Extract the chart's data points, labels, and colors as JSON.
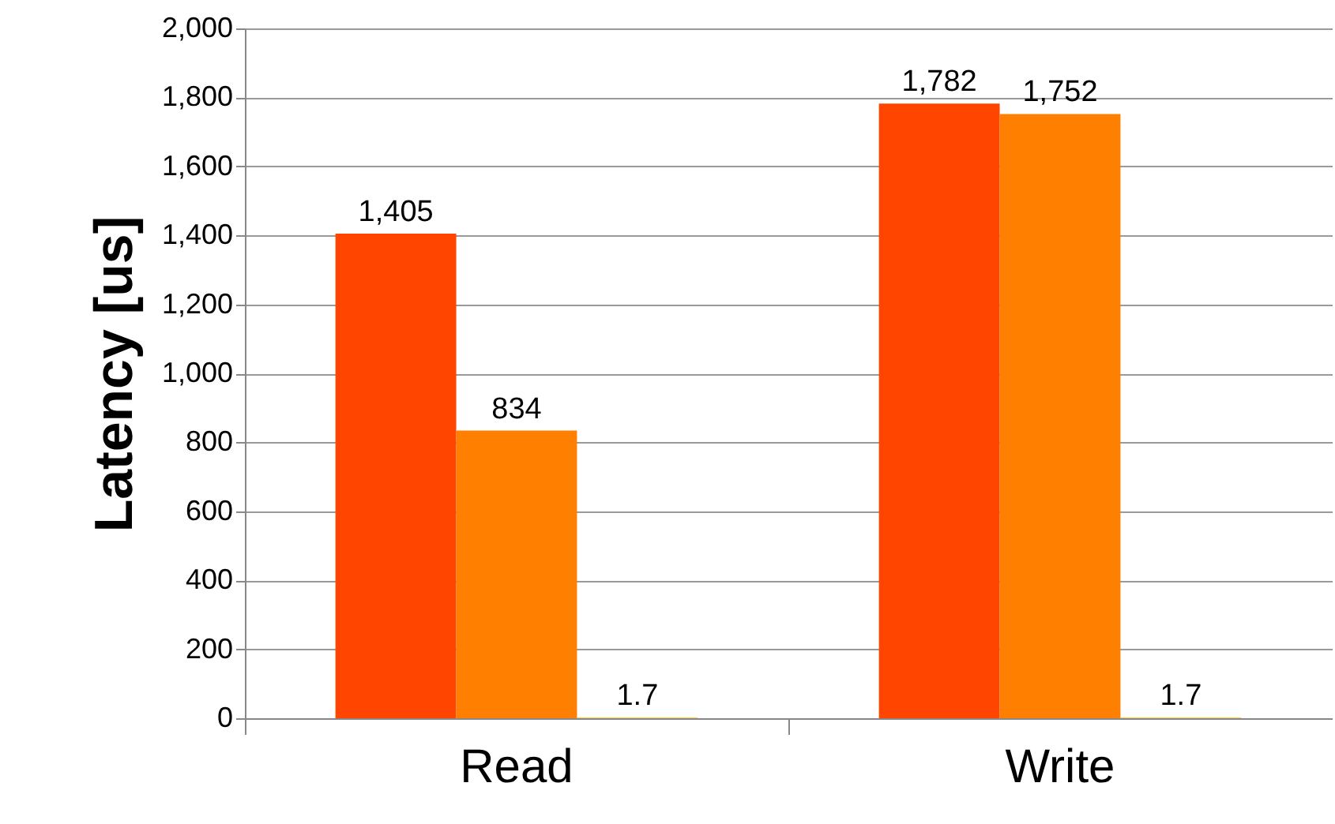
{
  "chart_data": {
    "type": "bar",
    "ylabel": "Latency [us]",
    "categories": [
      "Read",
      "Write"
    ],
    "series": [
      {
        "color": "#ff4500",
        "values": [
          1405,
          1782
        ],
        "value_labels": [
          "1,405",
          "1,782"
        ]
      },
      {
        "color": "#ff8000",
        "values": [
          834,
          1752
        ],
        "value_labels": [
          "834",
          "1,752"
        ]
      },
      {
        "color": "#ffc000",
        "values": [
          1.7,
          1.7
        ],
        "value_labels": [
          "1.7",
          "1.7"
        ]
      }
    ],
    "ylim": [
      0,
      2000
    ],
    "yticks": [
      0,
      200,
      400,
      600,
      800,
      {
        "value": 1000,
        "label": "1,000"
      },
      {
        "value": 1200,
        "label": "1,200"
      },
      {
        "value": 1400,
        "label": "1,400"
      },
      {
        "value": 1600,
        "label": "1,600"
      },
      {
        "value": 1800,
        "label": "1,800"
      },
      {
        "value": 2000,
        "label": "2,000"
      }
    ],
    "grid": "y"
  }
}
